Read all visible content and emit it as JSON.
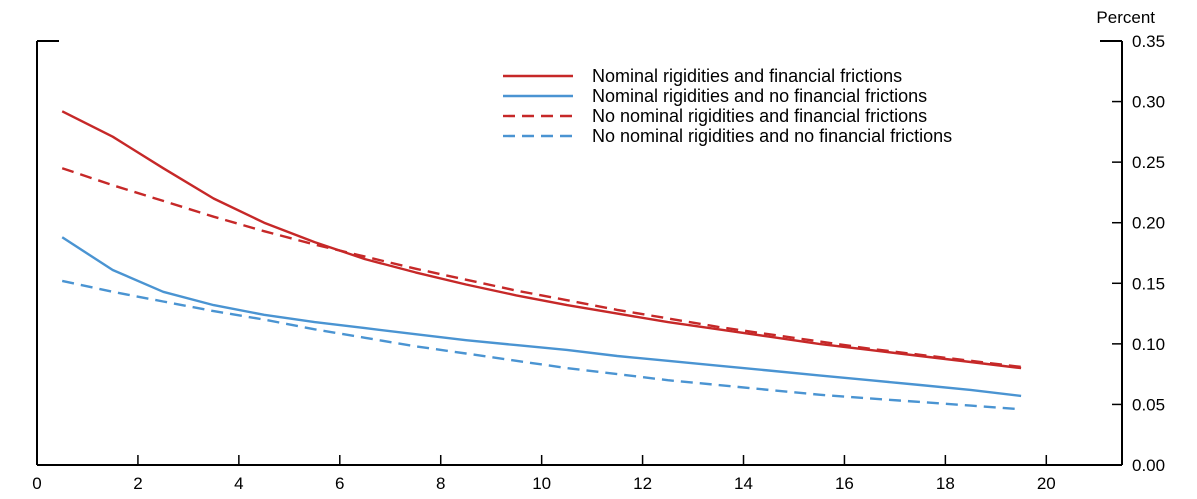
{
  "chart_data": {
    "type": "line",
    "title": "",
    "xlabel": "",
    "ylabel": "",
    "y_unit_label": "Percent",
    "y_axis_side": "right",
    "xlim": [
      0,
      21.5
    ],
    "ylim": [
      0,
      0.35
    ],
    "x_ticks": [
      0,
      2,
      4,
      6,
      8,
      10,
      12,
      14,
      16,
      18,
      20
    ],
    "x_tick_labels": [
      "0",
      "2",
      "4",
      "6",
      "8",
      "10",
      "12",
      "14",
      "16",
      "18",
      "20"
    ],
    "y_ticks": [
      0,
      0.05,
      0.1,
      0.15,
      0.2,
      0.25,
      0.3,
      0.35
    ],
    "y_tick_labels": [
      "0.00",
      "0.05",
      "0.10",
      "0.15",
      "0.20",
      "0.25",
      "0.30",
      "0.35"
    ],
    "grid": false,
    "legend_position": "top-right",
    "x": [
      0.5,
      1.5,
      2.5,
      3.5,
      4.5,
      5.5,
      6.5,
      7.5,
      8.5,
      9.5,
      10.5,
      11.5,
      12.5,
      13.5,
      14.5,
      15.5,
      16.5,
      17.5,
      18.5,
      19.5
    ],
    "series": [
      {
        "name": "Nominal rigidities and financial frictions",
        "color": "#c62828",
        "dash": "solid",
        "values": [
          0.292,
          0.271,
          0.245,
          0.22,
          0.2,
          0.184,
          0.17,
          0.159,
          0.149,
          0.14,
          0.132,
          0.125,
          0.118,
          0.112,
          0.106,
          0.1,
          0.095,
          0.09,
          0.085,
          0.08
        ]
      },
      {
        "name": "Nominal rigidities and no financial frictions",
        "color": "#4a94d2",
        "dash": "solid",
        "values": [
          0.188,
          0.161,
          0.143,
          0.132,
          0.124,
          0.118,
          0.113,
          0.108,
          0.103,
          0.099,
          0.095,
          0.09,
          0.086,
          0.082,
          0.078,
          0.074,
          0.07,
          0.066,
          0.062,
          0.057
        ]
      },
      {
        "name": "No nominal rigidities and financial frictions",
        "color": "#c62828",
        "dash": "dashed",
        "values": [
          0.245,
          0.231,
          0.218,
          0.205,
          0.193,
          0.182,
          0.172,
          0.162,
          0.153,
          0.144,
          0.136,
          0.128,
          0.121,
          0.114,
          0.108,
          0.102,
          0.096,
          0.091,
          0.086,
          0.081
        ]
      },
      {
        "name": "No nominal rigidities and no financial frictions",
        "color": "#4a94d2",
        "dash": "dashed",
        "values": [
          0.152,
          0.143,
          0.135,
          0.127,
          0.12,
          0.112,
          0.105,
          0.098,
          0.092,
          0.086,
          0.08,
          0.075,
          0.07,
          0.066,
          0.062,
          0.058,
          0.055,
          0.052,
          0.049,
          0.046
        ]
      }
    ]
  }
}
